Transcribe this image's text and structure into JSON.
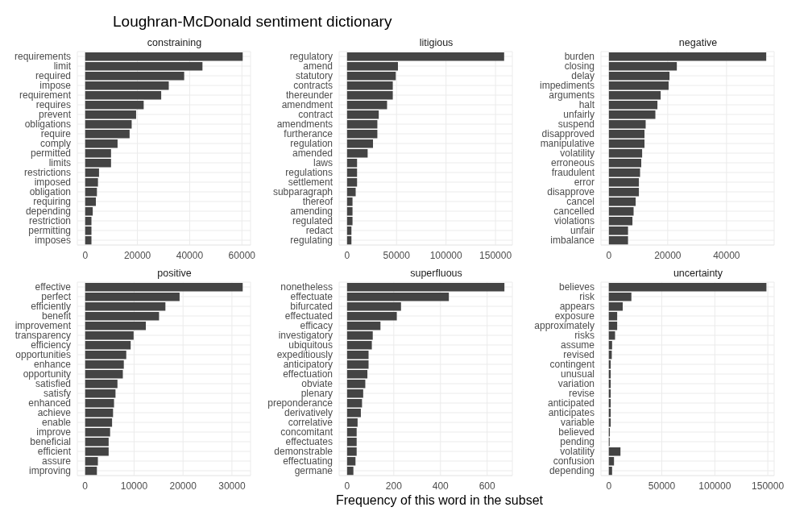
{
  "chart_data": [
    {
      "type": "bar",
      "orientation": "horizontal",
      "title": "constraining",
      "annotations": [
        "Loughran-McDonald sentiment dictionary"
      ],
      "grid": true,
      "color": "#444444",
      "categories": [
        "requirements",
        "limit",
        "required",
        "impose",
        "requirement",
        "requires",
        "prevent",
        "obligations",
        "require",
        "comply",
        "permitted",
        "limits",
        "restrictions",
        "imposed",
        "obligation",
        "requiring",
        "depending",
        "restriction",
        "permitting",
        "imposes"
      ],
      "values": [
        60300,
        44900,
        37900,
        32000,
        29100,
        22400,
        19500,
        17800,
        17000,
        12400,
        9900,
        9900,
        5300,
        4900,
        4500,
        4100,
        2900,
        2400,
        2400,
        2400
      ],
      "xlim": [
        -3000,
        63300
      ],
      "xticks": [
        0,
        20000,
        40000,
        60000
      ]
    },
    {
      "type": "bar",
      "orientation": "horizontal",
      "title": "litigious",
      "grid": true,
      "color": "#444444",
      "categories": [
        "regulatory",
        "amend",
        "statutory",
        "contracts",
        "thereunder",
        "amendment",
        "contract",
        "amendments",
        "furtherance",
        "regulation",
        "amended",
        "laws",
        "regulations",
        "settlement",
        "subparagraph",
        "thereof",
        "amending",
        "regulated",
        "redact",
        "regulating"
      ],
      "values": [
        158700,
        51400,
        49200,
        46200,
        46200,
        40400,
        32000,
        30600,
        30600,
        26200,
        20800,
        10100,
        10100,
        10100,
        8700,
        5500,
        5500,
        5500,
        4400,
        4400
      ],
      "xlim": [
        -8000,
        167000
      ],
      "xticks": [
        0,
        50000,
        100000,
        150000
      ]
    },
    {
      "type": "bar",
      "orientation": "horizontal",
      "title": "negative",
      "grid": true,
      "color": "#444444",
      "categories": [
        "burden",
        "closing",
        "delay",
        "impediments",
        "arguments",
        "halt",
        "unfairly",
        "suspend",
        "disapproved",
        "manipulative",
        "volatility",
        "erroneous",
        "fraudulent",
        "error",
        "disapprove",
        "cancel",
        "cancelled",
        "violations",
        "unfair",
        "imbalance"
      ],
      "values": [
        53500,
        23100,
        20600,
        20300,
        17600,
        16500,
        15800,
        12500,
        12100,
        12100,
        11300,
        11000,
        10600,
        10200,
        10200,
        9100,
        8400,
        8000,
        6500,
        6500
      ],
      "xlim": [
        -2700,
        56200
      ],
      "xticks": [
        0,
        20000,
        40000
      ]
    },
    {
      "type": "bar",
      "orientation": "horizontal",
      "title": "positive",
      "grid": true,
      "color": "#444444",
      "categories": [
        "effective",
        "perfect",
        "efficiently",
        "benefit",
        "improvement",
        "transparency",
        "efficiency",
        "opportunities",
        "enhance",
        "opportunity",
        "satisfied",
        "satisfy",
        "enhanced",
        "achieve",
        "enable",
        "improve",
        "beneficial",
        "efficient",
        "assure",
        "improving"
      ],
      "values": [
        32200,
        19300,
        16400,
        15100,
        12400,
        9900,
        9300,
        8400,
        7900,
        7700,
        6600,
        6200,
        5900,
        5700,
        5500,
        5100,
        4800,
        4800,
        2600,
        2400
      ],
      "xlim": [
        -1600,
        33800
      ],
      "xticks": [
        0,
        10000,
        20000,
        30000
      ]
    },
    {
      "type": "bar",
      "orientation": "horizontal",
      "title": "superfluous",
      "xlabel": "Frequency of this word in the subset",
      "grid": true,
      "color": "#444444",
      "categories": [
        "nonetheless",
        "effectuate",
        "bifurcated",
        "effectuated",
        "efficacy",
        "investigatory",
        "ubiquitous",
        "expeditiously",
        "anticipatory",
        "effectuation",
        "obviate",
        "plenary",
        "preponderance",
        "derivatively",
        "correlative",
        "concomitant",
        "effectuates",
        "demonstrable",
        "effectuating",
        "germane"
      ],
      "values": [
        674,
        436,
        231,
        213,
        143,
        110,
        106,
        92,
        92,
        87,
        78,
        69,
        64,
        59,
        45,
        41,
        41,
        41,
        36,
        27
      ],
      "xlim": [
        -34,
        708
      ],
      "xticks": [
        0,
        200,
        400,
        600
      ]
    },
    {
      "type": "bar",
      "orientation": "horizontal",
      "title": "uncertainty",
      "grid": true,
      "color": "#444444",
      "categories": [
        "believes",
        "risk",
        "appears",
        "exposure",
        "approximately",
        "risks",
        "assume",
        "revised",
        "contingent",
        "unusual",
        "variation",
        "revise",
        "anticipated",
        "anticipates",
        "variable",
        "believed",
        "pending",
        "volatility",
        "confusion",
        "depending"
      ],
      "values": [
        148700,
        21300,
        13100,
        7900,
        7900,
        5900,
        3100,
        2800,
        1800,
        1800,
        1800,
        1800,
        1800,
        1800,
        1800,
        1000,
        800,
        11000,
        4900,
        3100
      ],
      "xlim": [
        -7400,
        156000
      ],
      "xticks": [
        0,
        50000,
        100000,
        150000
      ]
    }
  ]
}
